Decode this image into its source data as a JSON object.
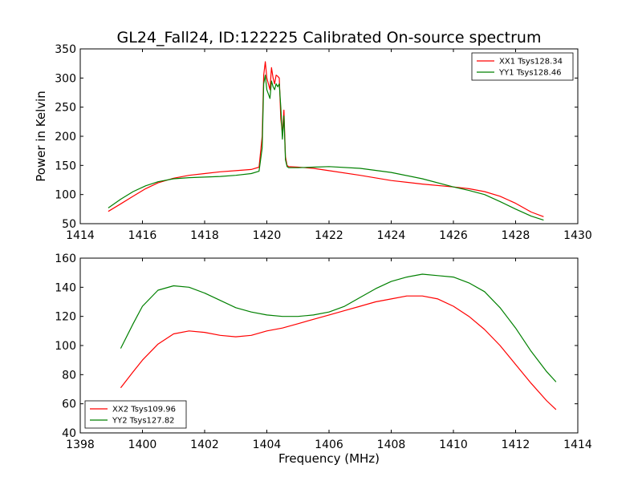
{
  "chart_data": [
    {
      "type": "line",
      "title": "GL24_Fall24, ID:122225 Calibrated On-source spectrum",
      "xlabel": "",
      "ylabel": "Power in Kelvin",
      "xlim": [
        1414,
        1430
      ],
      "ylim": [
        50,
        350
      ],
      "xticks": [
        1414,
        1416,
        1418,
        1420,
        1422,
        1424,
        1426,
        1428,
        1430
      ],
      "yticks": [
        50,
        100,
        150,
        200,
        250,
        300,
        350
      ],
      "legend_position": "top-right",
      "series": [
        {
          "name": "XX1 Tsys128.34",
          "color": "#ff0000",
          "x": [
            1414.9,
            1415.3,
            1415.7,
            1416.1,
            1416.5,
            1417.0,
            1417.5,
            1418.0,
            1418.5,
            1419.0,
            1419.5,
            1419.75,
            1419.85,
            1419.9,
            1419.95,
            1420.0,
            1420.1,
            1420.15,
            1420.2,
            1420.25,
            1420.3,
            1420.35,
            1420.4,
            1420.45,
            1420.5,
            1420.55,
            1420.6,
            1420.65,
            1420.7,
            1421.0,
            1421.5,
            1422.0,
            1423.0,
            1424.0,
            1425.0,
            1426.0,
            1426.5,
            1427.0,
            1427.5,
            1428.0,
            1428.5,
            1428.9
          ],
          "values": [
            71,
            84,
            97,
            110,
            120,
            128,
            133,
            136,
            139,
            141,
            143,
            147,
            200,
            305,
            328,
            300,
            280,
            318,
            300,
            290,
            305,
            303,
            300,
            230,
            205,
            245,
            165,
            150,
            148,
            147,
            145,
            141,
            133,
            124,
            118,
            113,
            110,
            105,
            97,
            85,
            70,
            62
          ]
        },
        {
          "name": "YY1 Tsys128.46",
          "color": "#008000",
          "x": [
            1414.9,
            1415.3,
            1415.7,
            1416.1,
            1416.5,
            1417.0,
            1417.5,
            1418.0,
            1418.5,
            1419.0,
            1419.5,
            1419.75,
            1419.85,
            1419.9,
            1419.95,
            1420.0,
            1420.1,
            1420.15,
            1420.2,
            1420.25,
            1420.3,
            1420.35,
            1420.4,
            1420.45,
            1420.5,
            1420.55,
            1420.6,
            1420.65,
            1420.7,
            1421.0,
            1421.5,
            1422.0,
            1423.0,
            1424.0,
            1425.0,
            1426.0,
            1426.5,
            1427.0,
            1427.5,
            1428.0,
            1428.5,
            1428.9
          ],
          "values": [
            77,
            92,
            105,
            115,
            122,
            127,
            129,
            130,
            131,
            133,
            136,
            140,
            180,
            290,
            305,
            280,
            265,
            295,
            285,
            280,
            290,
            285,
            290,
            250,
            195,
            235,
            160,
            148,
            146,
            146,
            147,
            148,
            145,
            138,
            127,
            113,
            107,
            100,
            88,
            75,
            63,
            56
          ]
        }
      ]
    },
    {
      "type": "line",
      "title": "",
      "xlabel": "Frequency (MHz)",
      "ylabel": "",
      "xlim": [
        1398,
        1414
      ],
      "ylim": [
        40,
        160
      ],
      "xticks": [
        1398,
        1400,
        1402,
        1404,
        1406,
        1408,
        1410,
        1412,
        1414
      ],
      "yticks": [
        40,
        60,
        80,
        100,
        120,
        140,
        160
      ],
      "legend_position": "bottom-left",
      "series": [
        {
          "name": "XX2 Tsys109.96",
          "color": "#ff0000",
          "x": [
            1399.3,
            1399.7,
            1400.0,
            1400.5,
            1401.0,
            1401.5,
            1402.0,
            1402.5,
            1403.0,
            1403.5,
            1404.0,
            1404.5,
            1405.0,
            1405.5,
            1406.0,
            1406.5,
            1407.0,
            1407.5,
            1408.0,
            1408.5,
            1409.0,
            1409.5,
            1410.0,
            1410.5,
            1411.0,
            1411.5,
            1412.0,
            1412.5,
            1413.0,
            1413.3
          ],
          "values": [
            71,
            82,
            90,
            101,
            108,
            110,
            109,
            107,
            106,
            107,
            110,
            112,
            115,
            118,
            121,
            124,
            127,
            130,
            132,
            134,
            134,
            132,
            127,
            120,
            111,
            100,
            87,
            74,
            62,
            56
          ]
        },
        {
          "name": "YY2 Tsys127.82",
          "color": "#008000",
          "x": [
            1399.3,
            1399.7,
            1400.0,
            1400.5,
            1401.0,
            1401.5,
            1402.0,
            1402.5,
            1403.0,
            1403.5,
            1404.0,
            1404.5,
            1405.0,
            1405.5,
            1406.0,
            1406.5,
            1407.0,
            1407.5,
            1408.0,
            1408.5,
            1409.0,
            1409.5,
            1410.0,
            1410.5,
            1411.0,
            1411.5,
            1412.0,
            1412.5,
            1413.0,
            1413.3
          ],
          "values": [
            98,
            115,
            127,
            138,
            141,
            140,
            136,
            131,
            126,
            123,
            121,
            120,
            120,
            121,
            123,
            127,
            133,
            139,
            144,
            147,
            149,
            148,
            147,
            143,
            137,
            126,
            112,
            96,
            82,
            75
          ]
        }
      ]
    }
  ]
}
